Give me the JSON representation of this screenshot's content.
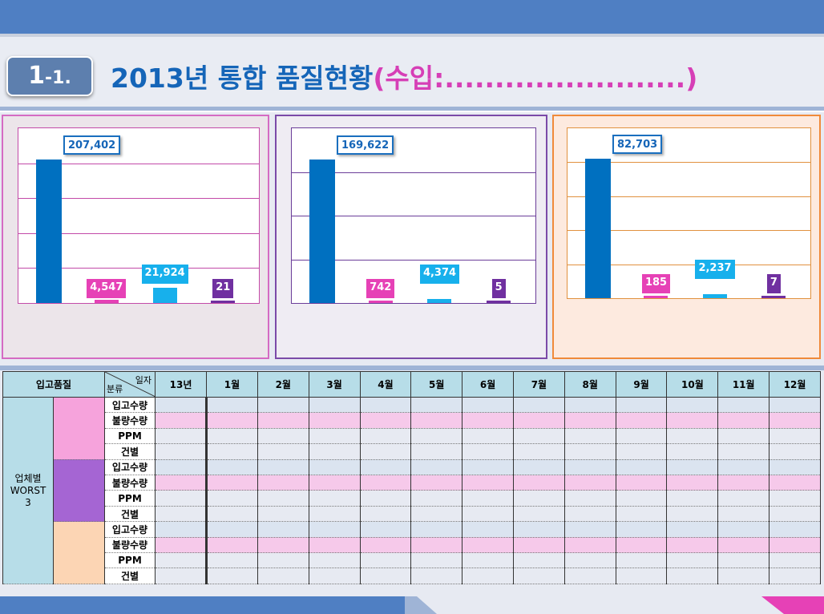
{
  "header": {
    "section_main": "1",
    "section_sub": "-1.",
    "title_main": "2013년 통합 품질현황",
    "title_paren": "(수입:........................)"
  },
  "colors": {
    "top_band": "#4f7fc3",
    "bar_receipt": "#0070c0",
    "bar_defect": "#e641b6",
    "bar_ppm": "#17b0ec",
    "bar_cases": "#7030a0"
  },
  "chart_data": [
    {
      "type": "bar",
      "categories": [
        "",
        "",
        "",
        ""
      ],
      "values": [
        207402,
        4547,
        21924,
        21
      ],
      "labels": [
        "207,402",
        "4,547",
        "21,924",
        "21"
      ]
    },
    {
      "type": "bar",
      "categories": [
        "",
        "",
        "",
        ""
      ],
      "values": [
        169622,
        742,
        4374,
        5
      ],
      "labels": [
        "169,622",
        "742",
        "4,374",
        "5"
      ]
    },
    {
      "type": "bar",
      "categories": [
        "",
        "",
        "",
        ""
      ],
      "values": [
        82703,
        185,
        2237,
        7
      ],
      "labels": [
        "82,703",
        "185",
        "2,237",
        "7"
      ]
    }
  ],
  "table": {
    "corner": "입고품질",
    "diag_top": "일자",
    "diag_bottom": "분류",
    "columns": [
      "13년",
      "1월",
      "2월",
      "3월",
      "4월",
      "5월",
      "6월",
      "7월",
      "8월",
      "9월",
      "10월",
      "11월",
      "12월"
    ],
    "group_label_1": "업체별",
    "group_label_2": "WORST",
    "group_label_3": "3",
    "row_labels": [
      "입고수량",
      "불량수량",
      "PPM",
      "건별"
    ],
    "vendor_colors": [
      "#f6a3dc",
      "#a565d3",
      "#fcd5b4"
    ]
  }
}
